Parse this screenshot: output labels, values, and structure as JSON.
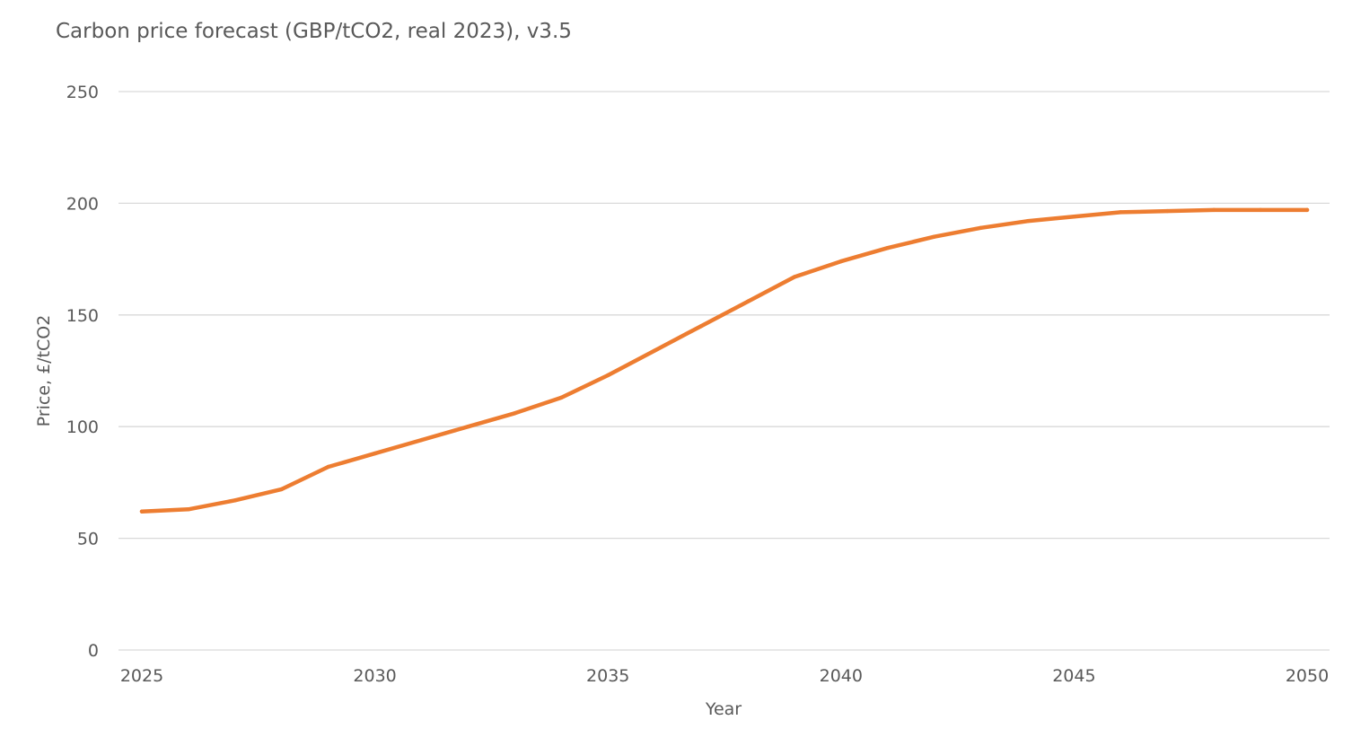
{
  "chart_data": {
    "type": "line",
    "title": "Carbon price forecast (GBP/tCO2, real 2023), v3.5",
    "xlabel": "Year",
    "ylabel": "Price, £/tCO2",
    "xlim": [
      2025,
      2050
    ],
    "ylim": [
      0,
      250
    ],
    "x_ticks": [
      2025,
      2030,
      2035,
      2040,
      2045,
      2050
    ],
    "y_ticks": [
      0,
      50,
      100,
      150,
      200,
      250
    ],
    "grid": true,
    "legend": "none",
    "series": [
      {
        "color": "#ED7D31",
        "x": [
          2025,
          2026,
          2027,
          2028,
          2029,
          2030,
          2031,
          2032,
          2033,
          2034,
          2035,
          2036,
          2037,
          2038,
          2039,
          2040,
          2041,
          2042,
          2043,
          2044,
          2045,
          2046,
          2047,
          2048,
          2049,
          2050
        ],
        "y": [
          62,
          63,
          67,
          72,
          82,
          88,
          94,
          100,
          106,
          113,
          123,
          134,
          145,
          156,
          167,
          174,
          180,
          185,
          189,
          192,
          194,
          196,
          196.5,
          197,
          197,
          197
        ]
      }
    ]
  }
}
